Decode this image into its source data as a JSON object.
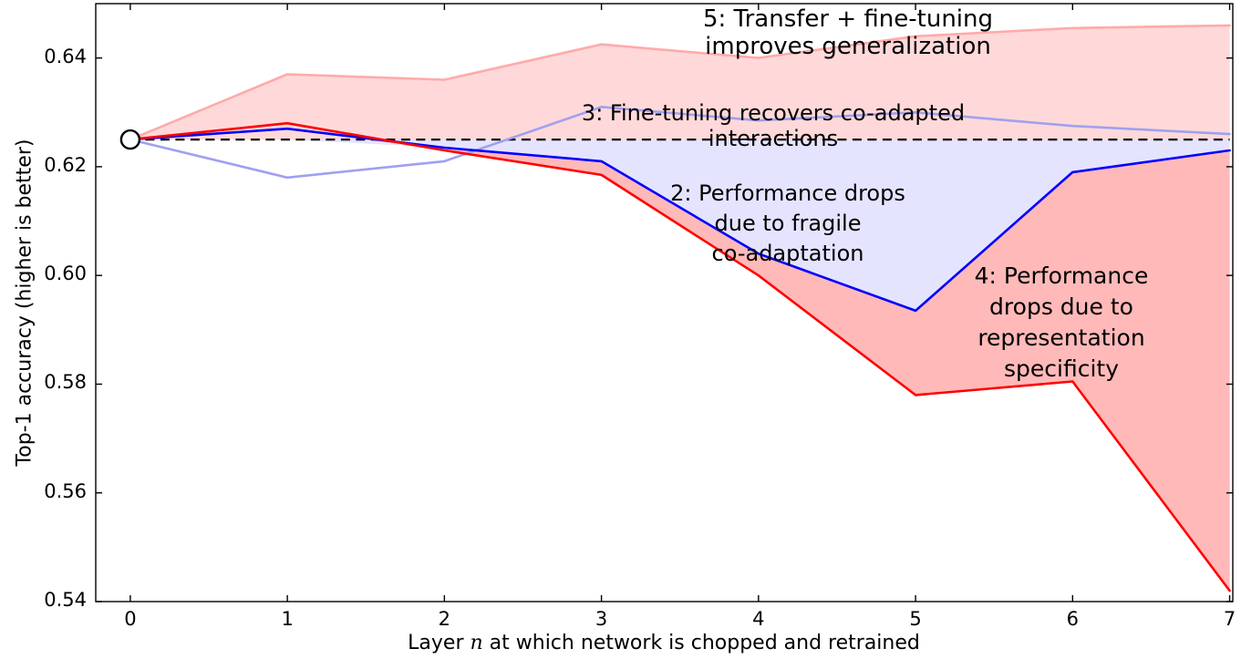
{
  "chart_data": {
    "type": "line",
    "title": "",
    "xlabel": "Layer n at which network is chopped and retrained",
    "xlabel_parts": {
      "pre": "Layer ",
      "math": "n",
      "post": " at which network is chopped and retrained"
    },
    "ylabel": "Top-1 accuracy (higher is better)",
    "x": [
      0,
      1,
      2,
      3,
      4,
      5,
      6,
      7
    ],
    "xticks": [
      0,
      1,
      2,
      3,
      4,
      5,
      6,
      7
    ],
    "yticks": [
      0.54,
      0.56,
      0.58,
      0.6,
      0.62,
      0.64
    ],
    "xlim": [
      -0.22,
      7.02
    ],
    "ylim": [
      0.54,
      0.65
    ],
    "grid": false,
    "legend_position": "none (series labeled via in-plot annotations)",
    "baseline": {
      "value": 0.625,
      "style": "dashed",
      "color": "#000000",
      "marker": "open-circle",
      "marker_x": 0
    },
    "series": [
      {
        "key": "anb_plus",
        "label": "5: Transfer + fine-tuning improves generalization",
        "color": "#ffaaaa",
        "fill": "rgba(255,130,130,0.30)",
        "values": [
          0.625,
          0.637,
          0.636,
          0.6425,
          0.64,
          0.644,
          0.6455,
          0.646
        ]
      },
      {
        "key": "bnb_plus",
        "label": "3: Fine-tuning recovers co-adapted interactions",
        "color": "#a0a0f0",
        "fill": null,
        "values": [
          0.625,
          0.618,
          0.621,
          0.631,
          0.6285,
          0.63,
          0.6275,
          0.626
        ]
      },
      {
        "key": "bnb",
        "label": "2: Performance drops due to fragile co-adaptation",
        "color": "#0000ff",
        "fill": "rgba(130,130,255,0.22)",
        "values": [
          0.625,
          0.627,
          0.6235,
          0.621,
          0.604,
          0.5935,
          0.619,
          0.623
        ]
      },
      {
        "key": "anb",
        "label": "4: Performance drops due to representation specificity",
        "color": "#ff0000",
        "fill": "rgba(255,70,70,0.38)",
        "values": [
          0.625,
          0.628,
          0.623,
          0.6185,
          0.6,
          0.578,
          0.5805,
          0.542
        ]
      }
    ],
    "annotations": [
      {
        "id": "a5",
        "text": "5: Transfer + fine-tuning improves generalization"
      },
      {
        "id": "a3",
        "text": "3: Fine-tuning recovers co-adapted interactions"
      },
      {
        "id": "a2",
        "text": "2: Performance drops\ndue to fragile\nco-adaptation"
      },
      {
        "id": "a4",
        "text": "4: Performance\ndrops due to\nrepresentation\nspecificity"
      }
    ]
  }
}
